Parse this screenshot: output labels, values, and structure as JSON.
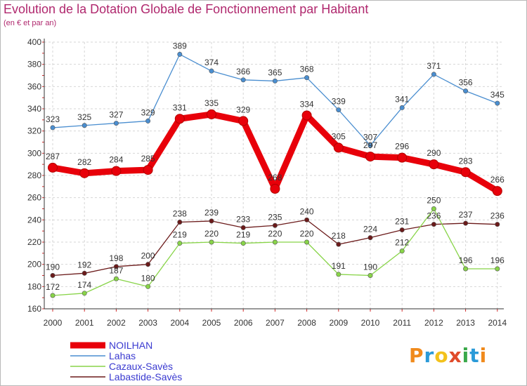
{
  "header": {
    "title": "Evolution de la Dotation Globale de Fonctionnement par Habitant",
    "subtitle": "(en € et par an)"
  },
  "brand": {
    "letters": [
      "P",
      "r",
      "o",
      "x",
      "i",
      "t",
      "i"
    ],
    "colors": [
      "#f08a1c",
      "#2a9ad8",
      "#f3c21c",
      "#e04a2a",
      "#3aa84a",
      "#2a9ad8",
      "#f08a1c"
    ]
  },
  "chart_data": {
    "type": "line",
    "title": "Evolution de la Dotation Globale de Fonctionnement par Habitant",
    "subtitle": "(en € et par an)",
    "xlabel": "",
    "ylabel": "",
    "ylim": [
      160,
      400
    ],
    "yticks": [
      160,
      180,
      200,
      220,
      240,
      260,
      280,
      300,
      320,
      340,
      360,
      380,
      400
    ],
    "grid": true,
    "legend": "bottom-left",
    "categories": [
      "2000",
      "2001",
      "2002",
      "2003",
      "2004",
      "2005",
      "2006",
      "2007",
      "2008",
      "2009",
      "2010",
      "2011",
      "2012",
      "2013",
      "2014"
    ],
    "series": [
      {
        "name": "Lahas",
        "color": "#4a8ed0",
        "values": [
          323,
          325,
          327,
          329,
          389,
          374,
          366,
          365,
          368,
          339,
          307,
          341,
          371,
          356,
          345
        ]
      },
      {
        "name": "Labastide-Savès",
        "color": "#6b1a1a",
        "values": [
          190,
          192,
          198,
          200,
          238,
          239,
          233,
          235,
          240,
          218,
          224,
          231,
          236,
          237,
          236
        ]
      },
      {
        "name": "Cazaux-Savès",
        "color": "#88d448",
        "values": [
          172,
          174,
          187,
          180,
          219,
          220,
          219,
          220,
          220,
          191,
          190,
          212,
          250,
          196,
          196
        ]
      },
      {
        "name": "NOILHAN",
        "color": "#e8000a",
        "values": [
          287,
          282,
          284,
          285,
          331,
          335,
          329,
          268,
          334,
          305,
          297,
          296,
          290,
          283,
          266
        ]
      }
    ],
    "legend_order": [
      "NOILHAN",
      "Lahas",
      "Cazaux-Savès",
      "Labastide-Savès"
    ]
  }
}
